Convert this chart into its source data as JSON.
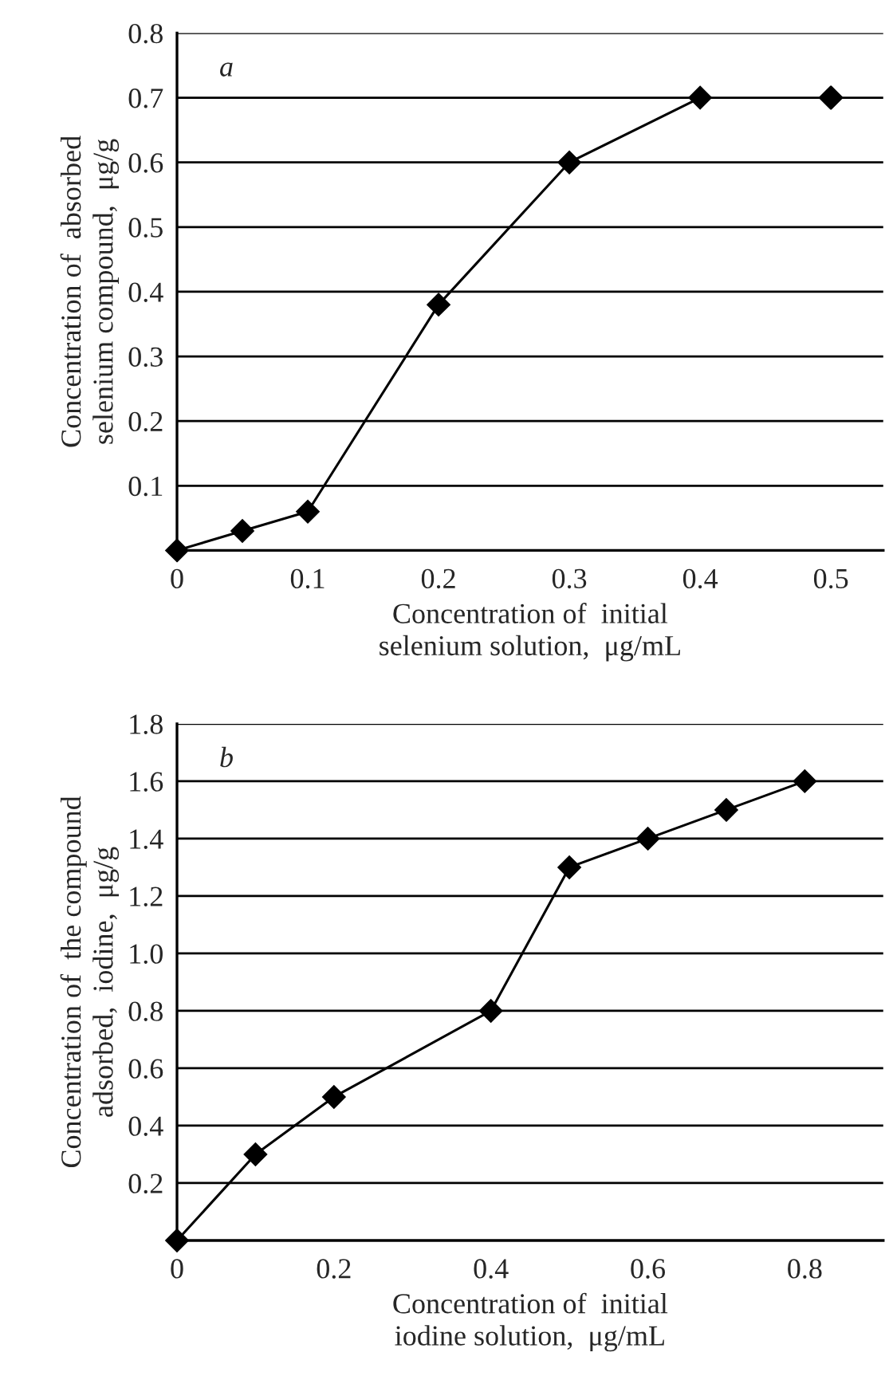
{
  "chart_data": [
    {
      "type": "line",
      "xlabel": "Concentration of  initial\nselenium solution,  μg/mL",
      "ylabel": "Concentration of  absorbed\nselenium compound,  μg/g",
      "annotations": [
        "a"
      ],
      "series": [
        {
          "type": "line",
          "color": "#000000",
          "x": [
            0,
            0.05,
            0.1,
            0.2,
            0.3,
            0.4
          ],
          "values": [
            0,
            0.03,
            0.06,
            0.38,
            0.6,
            0.7
          ]
        },
        {
          "type": "scatter",
          "color": "#000000",
          "x": [
            0.5
          ],
          "values": [
            0.7
          ]
        }
      ],
      "xlim": [
        0,
        0.54
      ],
      "xticks": [
        0,
        0.1,
        0.2,
        0.3,
        0.4,
        0.5
      ],
      "ylim": [
        0,
        0.8
      ],
      "yticks": [
        0.1,
        0.2,
        0.3,
        0.4,
        0.5,
        0.6,
        0.7,
        0.8
      ],
      "grid": "y",
      "marker": "diamond",
      "line_style": "solid"
    },
    {
      "type": "line",
      "xlabel": "Concentration of  initial\niodine solution,  μg/mL",
      "ylabel": "Concentration of  the compound\nadsorbed,  iodine,  μg/g",
      "annotations": [
        "b"
      ],
      "series": [
        {
          "type": "line",
          "color": "#000000",
          "x": [
            0,
            0.1,
            0.2,
            0.4,
            0.5,
            0.6,
            0.7,
            0.8
          ],
          "values": [
            0,
            0.3,
            0.5,
            0.8,
            1.3,
            1.4,
            1.5,
            1.6
          ]
        }
      ],
      "xlim": [
        0,
        0.9
      ],
      "xticks": [
        0,
        0.2,
        0.4,
        0.6,
        0.8
      ],
      "ylim": [
        0,
        1.8
      ],
      "yticks": [
        0.2,
        0.4,
        0.6,
        0.8,
        {
          "value": 1.0,
          "label": "1.0"
        },
        1.2,
        1.4,
        1.6,
        1.8
      ],
      "grid": "y",
      "marker": "diamond",
      "line_style": "solid"
    }
  ]
}
